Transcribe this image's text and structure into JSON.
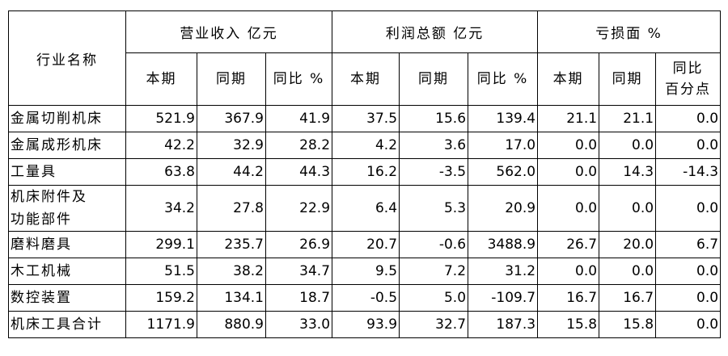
{
  "table": {
    "corner": "行业名称",
    "groups": [
      "营业收入 亿元",
      "利润总额 亿元",
      "亏损面 %"
    ],
    "subheaders": [
      "本期",
      "同期",
      "同比 %",
      "本期",
      "同期",
      "同比 %",
      "本期",
      "同期",
      "同比\n百分点"
    ],
    "rows": [
      [
        "金属切削机床",
        "521.9",
        "367.9",
        "41.9",
        "37.5",
        "15.6",
        "139.4",
        "21.1",
        "21.1",
        "0.0"
      ],
      [
        "金属成形机床",
        "42.2",
        "32.9",
        "28.2",
        "4.2",
        "3.6",
        "17.0",
        "0.0",
        "0.0",
        "0.0"
      ],
      [
        "工量具",
        "63.8",
        "44.2",
        "44.3",
        "16.2",
        "-3.5",
        "562.0",
        "0.0",
        "14.3",
        "-14.3"
      ],
      [
        "机床附件及\n功能部件",
        "34.2",
        "27.8",
        "22.9",
        "6.4",
        "5.3",
        "20.9",
        "0.0",
        "0.0",
        "0.0"
      ],
      [
        "磨料磨具",
        "299.1",
        "235.7",
        "26.9",
        "20.7",
        "-0.6",
        "3488.9",
        "26.7",
        "20.0",
        "6.7"
      ],
      [
        "木工机械",
        "51.5",
        "38.2",
        "34.7",
        "9.5",
        "7.2",
        "31.2",
        "0.0",
        "0.0",
        "0.0"
      ],
      [
        "数控装置",
        "159.2",
        "134.1",
        "18.7",
        "-0.5",
        "5.0",
        "-109.7",
        "16.7",
        "16.7",
        "0.0"
      ],
      [
        "机床工具合计",
        "1171.9",
        "880.9",
        "33.0",
        "93.9",
        "32.7",
        "187.3",
        "15.8",
        "15.8",
        "0.0"
      ]
    ]
  }
}
